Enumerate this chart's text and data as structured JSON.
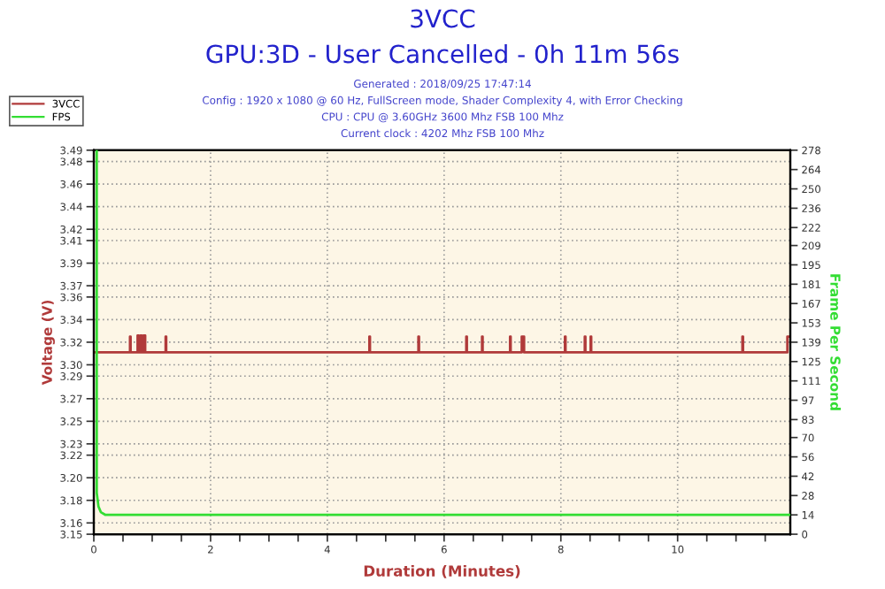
{
  "chart_data": {
    "type": "line",
    "title": "3VCC",
    "subtitle": "GPU:3D - User Cancelled - 0h 11m 56s",
    "annotations": [
      "Generated : 2018/09/25 17:47:14",
      "Config : 1920 x 1080 @ 60 Hz, FullScreen mode, Shader Complexity 4, with Error Checking",
      "CPU : CPU @ 3.60GHz 3600 Mhz FSB 100 Mhz",
      "Current clock : 4202 Mhz FSB 100 Mhz"
    ],
    "xlabel": "Duration (Minutes)",
    "ylabel": "Voltage (V)",
    "y2label": "Frame Per Second",
    "xlim": [
      0,
      11.93
    ],
    "xticks": [
      0,
      {
        "value": 0.5,
        "label": null
      },
      {
        "value": 1,
        "label": null
      },
      {
        "value": 1.5,
        "label": null
      },
      2,
      {
        "value": 2.5,
        "label": null
      },
      {
        "value": 3,
        "label": null
      },
      {
        "value": 3.5,
        "label": null
      },
      4,
      {
        "value": 4.5,
        "label": null
      },
      {
        "value": 5,
        "label": null
      },
      {
        "value": 5.5,
        "label": null
      },
      6,
      {
        "value": 6.5,
        "label": null
      },
      {
        "value": 7,
        "label": null
      },
      {
        "value": 7.5,
        "label": null
      },
      8,
      {
        "value": 8.5,
        "label": null
      },
      {
        "value": 9,
        "label": null
      },
      {
        "value": 9.5,
        "label": null
      },
      10,
      {
        "value": 10.5,
        "label": null
      },
      {
        "value": 11,
        "label": null
      },
      {
        "value": 11.5,
        "label": null
      }
    ],
    "ylim": [
      3.15,
      3.49
    ],
    "yticks": [
      {
        "value": 3.15,
        "label": "3.15"
      },
      {
        "value": 3.16,
        "label": "3.16"
      },
      {
        "value": 3.18,
        "label": "3.18"
      },
      {
        "value": 3.2,
        "label": "3.20"
      },
      {
        "value": 3.22,
        "label": "3.22"
      },
      {
        "value": 3.23,
        "label": "3.23"
      },
      {
        "value": 3.25,
        "label": "3.25"
      },
      {
        "value": 3.27,
        "label": "3.27"
      },
      {
        "value": 3.29,
        "label": "3.29"
      },
      {
        "value": 3.3,
        "label": "3.30"
      },
      {
        "value": 3.32,
        "label": "3.32"
      },
      {
        "value": 3.34,
        "label": "3.34"
      },
      {
        "value": 3.36,
        "label": "3.36"
      },
      {
        "value": 3.37,
        "label": "3.37"
      },
      {
        "value": 3.39,
        "label": "3.39"
      },
      {
        "value": 3.41,
        "label": "3.41"
      },
      {
        "value": 3.42,
        "label": "3.42"
      },
      {
        "value": 3.44,
        "label": "3.44"
      },
      {
        "value": 3.46,
        "label": "3.46"
      },
      {
        "value": 3.48,
        "label": "3.48"
      },
      {
        "value": 3.49,
        "label": "3.49"
      }
    ],
    "y2lim": [
      0,
      278
    ],
    "y2ticks": [
      0,
      14,
      28,
      42,
      56,
      70,
      83,
      97,
      111,
      125,
      139,
      153,
      167,
      181,
      195,
      209,
      222,
      236,
      250,
      264,
      278
    ],
    "grid": true,
    "legend": "top left",
    "line_style": "solid",
    "marker": "none",
    "series": [
      {
        "name": "3VCC",
        "color": "#b03a3a",
        "x": [
          0,
          0.62,
          0.62,
          0.63,
          0.63,
          0.75,
          0.75,
          0.77,
          0.77,
          0.8,
          0.8,
          0.82,
          0.82,
          0.85,
          0.85,
          0.88,
          0.88,
          1.23,
          1.23,
          1.24,
          1.24,
          4.72,
          4.72,
          4.73,
          4.73,
          5.56,
          5.56,
          5.57,
          5.57,
          6.38,
          6.38,
          6.39,
          6.39,
          6.65,
          6.65,
          6.66,
          6.66,
          7.13,
          7.13,
          7.14,
          7.14,
          7.33,
          7.33,
          7.37,
          7.37,
          8.07,
          8.07,
          8.08,
          8.08,
          8.41,
          8.41,
          8.42,
          8.42,
          8.51,
          8.51,
          8.52,
          8.52,
          11.11,
          11.11,
          11.12,
          11.12,
          11.88,
          11.88,
          11.93
        ],
        "values": [
          3.311,
          3.311,
          3.325,
          3.325,
          3.311,
          3.311,
          3.326,
          3.326,
          3.311,
          3.311,
          3.326,
          3.326,
          3.311,
          3.311,
          3.326,
          3.326,
          3.311,
          3.311,
          3.325,
          3.325,
          3.311,
          3.311,
          3.325,
          3.325,
          3.311,
          3.311,
          3.325,
          3.325,
          3.311,
          3.311,
          3.325,
          3.325,
          3.311,
          3.311,
          3.325,
          3.325,
          3.311,
          3.311,
          3.325,
          3.325,
          3.311,
          3.311,
          3.325,
          3.325,
          3.311,
          3.311,
          3.325,
          3.325,
          3.311,
          3.311,
          3.325,
          3.325,
          3.311,
          3.311,
          3.325,
          3.325,
          3.311,
          3.311,
          3.325,
          3.325,
          3.311,
          3.311,
          3.325,
          3.325
        ]
      },
      {
        "name": "FPS",
        "color": "#33dd33",
        "axis": "y2",
        "x": [
          0.05,
          0.05,
          0.08,
          0.12,
          0.2,
          11.93
        ],
        "values": [
          278,
          30,
          20,
          16,
          14,
          14
        ]
      }
    ]
  }
}
